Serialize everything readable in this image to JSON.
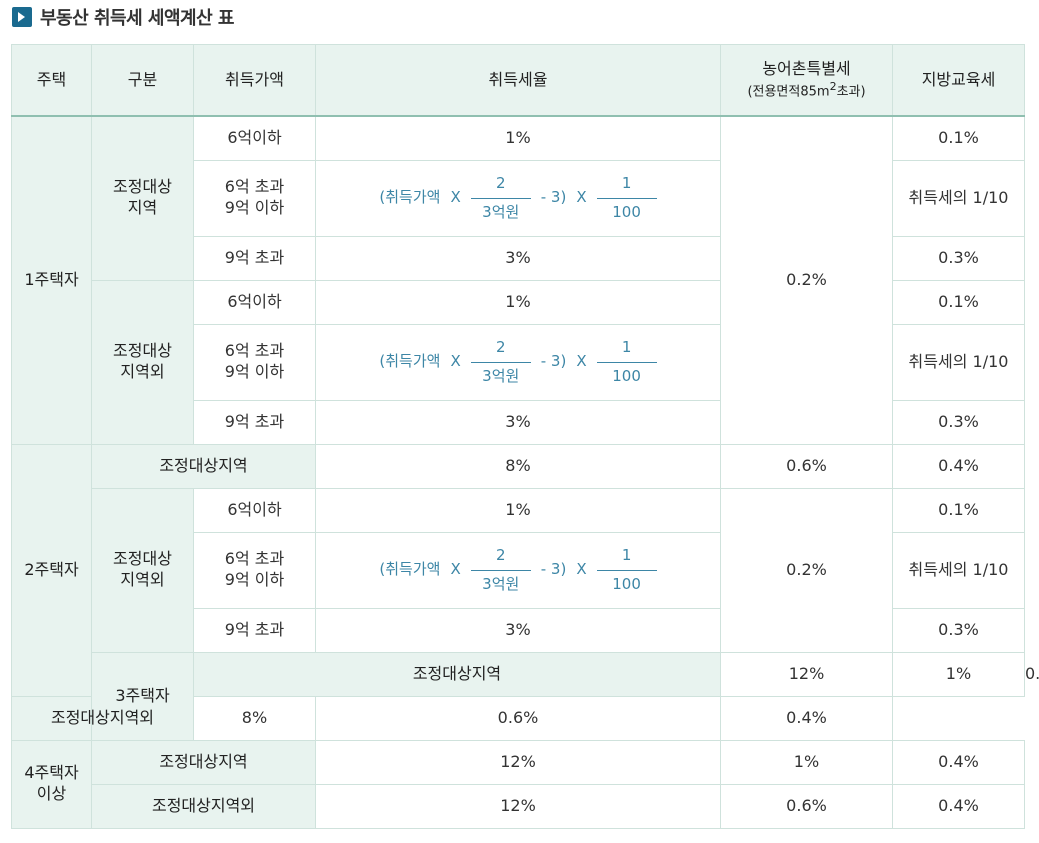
{
  "title": "부동산 취득세 세액계산 표",
  "headers": {
    "house": "주택",
    "category": "구분",
    "price": "취득가액",
    "rate": "취득세율",
    "rural": "농어촌특별세",
    "rural_sub_a": "(전용면적85m",
    "rural_sub_sup": "2",
    "rural_sub_b": "초과)",
    "edu": "지방교육세"
  },
  "formula": {
    "open": "(취득가액",
    "x1": "X",
    "num1": "2",
    "den1": "3억원",
    "minus": "- 3)",
    "x2": "X",
    "num2": "1",
    "den2": "100"
  },
  "rows": {
    "h1": "1주택자",
    "h2": "2주택자",
    "h3": "3주택자",
    "h4a": "4주택자",
    "h4b": "이상",
    "adj_a": "조정대상",
    "adj_b": "지역",
    "nonadj_a": "조정대상",
    "nonadj_b": "지역외",
    "adj_full": "조정대상지역",
    "nonadj_full": "조정대상지역외",
    "p1": "6억이하",
    "p2a": "6억 초과",
    "p2b": "9억 이하",
    "p3": "9억 초과",
    "r1": "1%",
    "r3": "3%",
    "r8": "8%",
    "r12": "12%",
    "rural_02": "0.2%",
    "rural_06": "0.6%",
    "rural_1": "1%",
    "edu_01": "0.1%",
    "edu_tenth": "취득세의 1/10",
    "edu_03": "0.3%",
    "edu_04": "0.4%"
  }
}
